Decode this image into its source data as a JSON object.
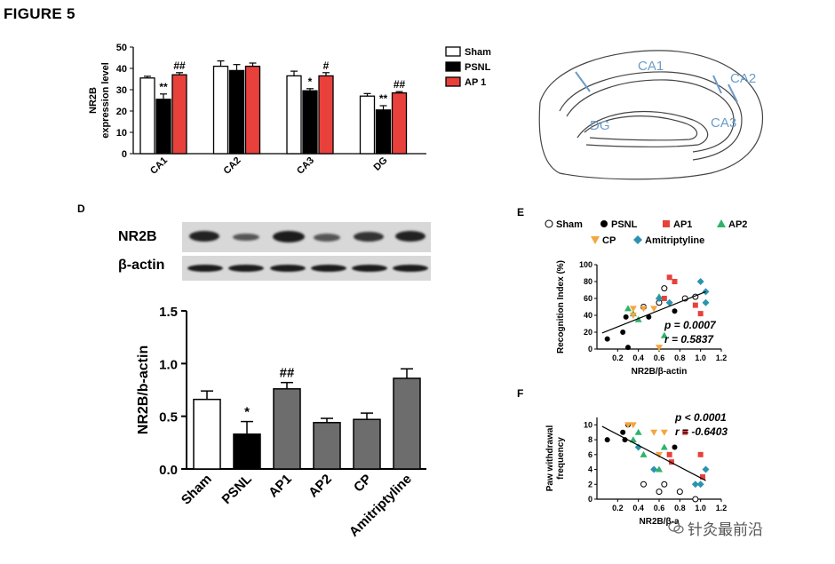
{
  "figure_title": "FIGURE 5",
  "panels": {
    "D": "D",
    "E": "E",
    "F": "F"
  },
  "colors": {
    "sham": "#ffffff",
    "psnl": "#000000",
    "ap1": "#e8413c",
    "gray_bar": "#6d6d6d",
    "hippo_label": "#6a9cc9",
    "cp": "#f4a640",
    "ap2": "#2db36a",
    "amitriptyline": "#2a93b0"
  },
  "hippocampus": {
    "regions": [
      "CA1",
      "CA2",
      "CA3",
      "DG"
    ]
  },
  "blot": {
    "labels": [
      "NR2B",
      "β-actin"
    ]
  },
  "chart_data": [
    {
      "type": "bar",
      "ylabel": "NR2B\nexpression level",
      "ylim": [
        0,
        50
      ],
      "yticks": [
        0,
        10,
        20,
        30,
        40,
        50
      ],
      "categories": [
        "CA1",
        "CA2",
        "CA3",
        "DG"
      ],
      "series": [
        {
          "name": "Sham",
          "values": [
            35.5,
            41,
            36.5,
            27
          ],
          "errors": [
            0.8,
            2.5,
            2.2,
            1.2
          ]
        },
        {
          "name": "PSNL",
          "values": [
            25.5,
            39,
            29.5,
            20.5
          ],
          "errors": [
            2.5,
            2.8,
            1,
            2
          ]
        },
        {
          "name": "AP 1",
          "values": [
            37,
            41,
            36.5,
            28.5
          ],
          "errors": [
            1,
            1.5,
            1.5,
            0.6
          ]
        }
      ],
      "annotations": [
        {
          "category": "CA1",
          "series": "PSNL",
          "text": "**"
        },
        {
          "category": "CA1",
          "series": "AP 1",
          "text": "##"
        },
        {
          "category": "CA3",
          "series": "PSNL",
          "text": "*"
        },
        {
          "category": "CA3",
          "series": "AP 1",
          "text": "#"
        },
        {
          "category": "DG",
          "series": "PSNL",
          "text": "**"
        },
        {
          "category": "DG",
          "series": "AP 1",
          "text": "##"
        }
      ]
    },
    {
      "type": "bar",
      "ylabel": "NR2B/b-actin",
      "ylim": [
        0,
        1.5
      ],
      "yticks": [
        "0.0",
        "0.5",
        "1.0",
        "1.5"
      ],
      "categories": [
        "Sham",
        "PSNL",
        "AP1",
        "AP2",
        "CP",
        "Amitriptyline"
      ],
      "values": [
        0.66,
        0.33,
        0.76,
        0.44,
        0.47,
        0.86
      ],
      "errors": [
        0.08,
        0.12,
        0.06,
        0.04,
        0.06,
        0.09
      ],
      "annotations": [
        {
          "category": "PSNL",
          "text": "*"
        },
        {
          "category": "AP1",
          "text": "##"
        }
      ]
    },
    {
      "type": "scatter",
      "xlabel": "NR2B/β-actin",
      "ylabel": "Recognition Index (%)",
      "xlim": [
        0,
        1.2
      ],
      "ylim": [
        0,
        100
      ],
      "xticks": [
        "0.2",
        "0.4",
        "0.6",
        "0.8",
        "1.0",
        "1.2"
      ],
      "yticks": [
        "0",
        "20",
        "40",
        "60",
        "80",
        "100"
      ],
      "stats": {
        "p": "p = 0.0007",
        "r": "r = 0.5837"
      },
      "regression": {
        "x": [
          0.05,
          1.05
        ],
        "y": [
          19,
          68
        ]
      },
      "legend": [
        "Sham",
        "PSNL",
        "AP1",
        "AP2",
        "CP",
        "Amitriptyline"
      ],
      "series": [
        {
          "name": "Sham",
          "points": [
            [
              0.45,
              50
            ],
            [
              0.6,
              55
            ],
            [
              0.65,
              72
            ],
            [
              0.85,
              60
            ],
            [
              0.95,
              62
            ]
          ]
        },
        {
          "name": "PSNL",
          "points": [
            [
              0.1,
              12
            ],
            [
              0.25,
              20
            ],
            [
              0.3,
              2
            ],
            [
              0.5,
              38
            ],
            [
              0.75,
              45
            ],
            [
              0.28,
              38
            ]
          ]
        },
        {
          "name": "AP1",
          "points": [
            [
              0.7,
              85
            ],
            [
              0.75,
              80
            ],
            [
              0.95,
              52
            ],
            [
              1.0,
              42
            ],
            [
              0.65,
              60
            ]
          ]
        },
        {
          "name": "AP2",
          "points": [
            [
              0.35,
              42
            ],
            [
              0.3,
              48
            ],
            [
              0.4,
              35
            ],
            [
              0.6,
              62
            ],
            [
              0.65,
              16
            ]
          ]
        },
        {
          "name": "CP",
          "points": [
            [
              0.35,
              48
            ],
            [
              0.45,
              48
            ],
            [
              0.55,
              48
            ],
            [
              0.35,
              40
            ],
            [
              0.6,
              2
            ]
          ]
        },
        {
          "name": "Amitriptyline",
          "points": [
            [
              0.6,
              60
            ],
            [
              0.7,
              55
            ],
            [
              1.0,
              80
            ],
            [
              1.05,
              68
            ],
            [
              1.05,
              55
            ]
          ]
        }
      ]
    },
    {
      "type": "scatter",
      "xlabel": "NR2B/β-a",
      "ylabel": "Paw withdrawal\nfrequency",
      "xlim": [
        0,
        1.2
      ],
      "ylim": [
        0,
        11
      ],
      "xticks": [
        "0.2",
        "0.4",
        "0.6",
        "0.8",
        "1.0",
        "1.2"
      ],
      "yticks": [
        "0",
        "2",
        "4",
        "6",
        "8",
        "10"
      ],
      "stats": {
        "p": "p < 0.0001",
        "r": "r = -0.6403"
      },
      "regression": {
        "x": [
          0.05,
          1.05
        ],
        "y": [
          9.8,
          2.5
        ]
      },
      "series": [
        {
          "name": "Sham",
          "points": [
            [
              0.45,
              2
            ],
            [
              0.6,
              1
            ],
            [
              0.65,
              2
            ],
            [
              0.8,
              1
            ],
            [
              0.95,
              0
            ]
          ]
        },
        {
          "name": "PSNL",
          "points": [
            [
              0.1,
              8
            ],
            [
              0.25,
              9
            ],
            [
              0.27,
              8
            ],
            [
              0.3,
              10
            ],
            [
              0.75,
              7
            ]
          ]
        },
        {
          "name": "AP1",
          "points": [
            [
              0.7,
              6
            ],
            [
              0.72,
              5
            ],
            [
              0.85,
              9
            ],
            [
              1.0,
              6
            ],
            [
              1.02,
              3
            ]
          ]
        },
        {
          "name": "AP2",
          "points": [
            [
              0.35,
              8
            ],
            [
              0.4,
              9
            ],
            [
              0.45,
              6
            ],
            [
              0.6,
              4
            ],
            [
              0.65,
              7
            ]
          ]
        },
        {
          "name": "CP",
          "points": [
            [
              0.3,
              10
            ],
            [
              0.35,
              10
            ],
            [
              0.55,
              9
            ],
            [
              0.65,
              9
            ],
            [
              0.6,
              6
            ]
          ]
        },
        {
          "name": "Amitriptyline",
          "points": [
            [
              0.4,
              7
            ],
            [
              0.55,
              4
            ],
            [
              0.95,
              2
            ],
            [
              1.0,
              2
            ],
            [
              1.05,
              4
            ]
          ]
        }
      ]
    }
  ],
  "watermark": "针灸最前沿"
}
